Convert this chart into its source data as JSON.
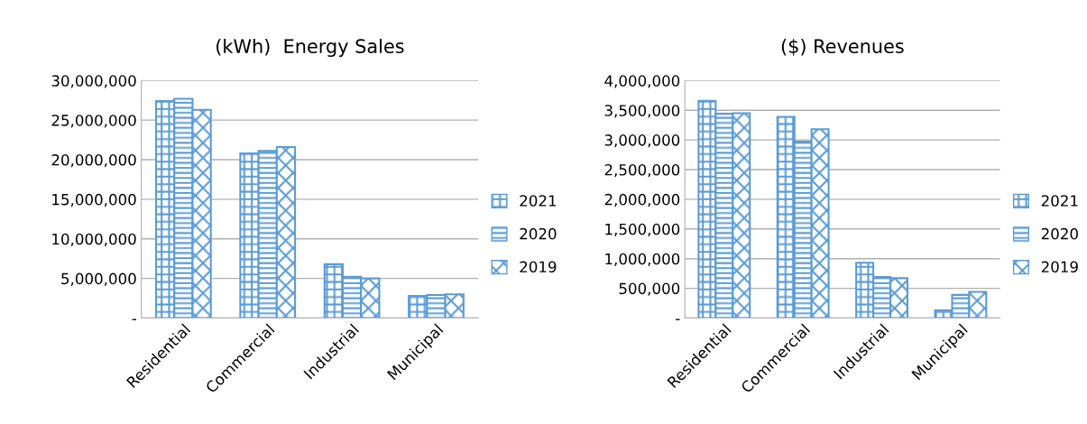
{
  "chart_data": [
    {
      "type": "bar",
      "title": "(kWh)  Energy Sales",
      "categories": [
        "Residential",
        "Commercial",
        "Industrial",
        "Municipal"
      ],
      "series": [
        {
          "name": "2021",
          "color": "#5b9bd5",
          "values": [
            27400000,
            20800000,
            6800000,
            2800000
          ]
        },
        {
          "name": "2020",
          "color": "#5b9bd5",
          "values": [
            27700000,
            21100000,
            5200000,
            2900000
          ]
        },
        {
          "name": "2019",
          "color": "#5b9bd5",
          "values": [
            26300000,
            21600000,
            5000000,
            3000000
          ]
        }
      ],
      "ylim": [
        0,
        30000000
      ],
      "yticks": [
        {
          "value": 0,
          "label": "-"
        },
        {
          "value": 5000000,
          "label": "5,000,000"
        },
        {
          "value": 10000000,
          "label": "10,000,000"
        },
        {
          "value": 15000000,
          "label": "15,000,000"
        },
        {
          "value": 20000000,
          "label": "20,000,000"
        },
        {
          "value": 25000000,
          "label": "25,000,000"
        },
        {
          "value": 30000000,
          "label": "30,000,000"
        }
      ],
      "grid": "y",
      "legend": "right"
    },
    {
      "type": "bar",
      "title": "($) Revenues",
      "categories": [
        "Residential",
        "Commercial",
        "Industrial",
        "Municipal"
      ],
      "series": [
        {
          "name": "2021",
          "color": "#5b9bd5",
          "values": [
            3660000,
            3390000,
            930000,
            130000
          ]
        },
        {
          "name": "2020",
          "color": "#5b9bd5",
          "values": [
            3440000,
            2970000,
            690000,
            390000
          ]
        },
        {
          "name": "2019",
          "color": "#5b9bd5",
          "values": [
            3450000,
            3180000,
            670000,
            440000
          ]
        }
      ],
      "ylim": [
        0,
        4000000
      ],
      "yticks": [
        {
          "value": 0,
          "label": "-"
        },
        {
          "value": 500000,
          "label": "500,000"
        },
        {
          "value": 1000000,
          "label": "1,000,000"
        },
        {
          "value": 1500000,
          "label": "1,500,000"
        },
        {
          "value": 2000000,
          "label": "2,000,000"
        },
        {
          "value": 2500000,
          "label": "2,500,000"
        },
        {
          "value": 3000000,
          "label": "3,000,000"
        },
        {
          "value": 3500000,
          "label": "3,500,000"
        },
        {
          "value": 4000000,
          "label": "4,000,000"
        }
      ],
      "grid": "y",
      "legend": "right"
    }
  ]
}
